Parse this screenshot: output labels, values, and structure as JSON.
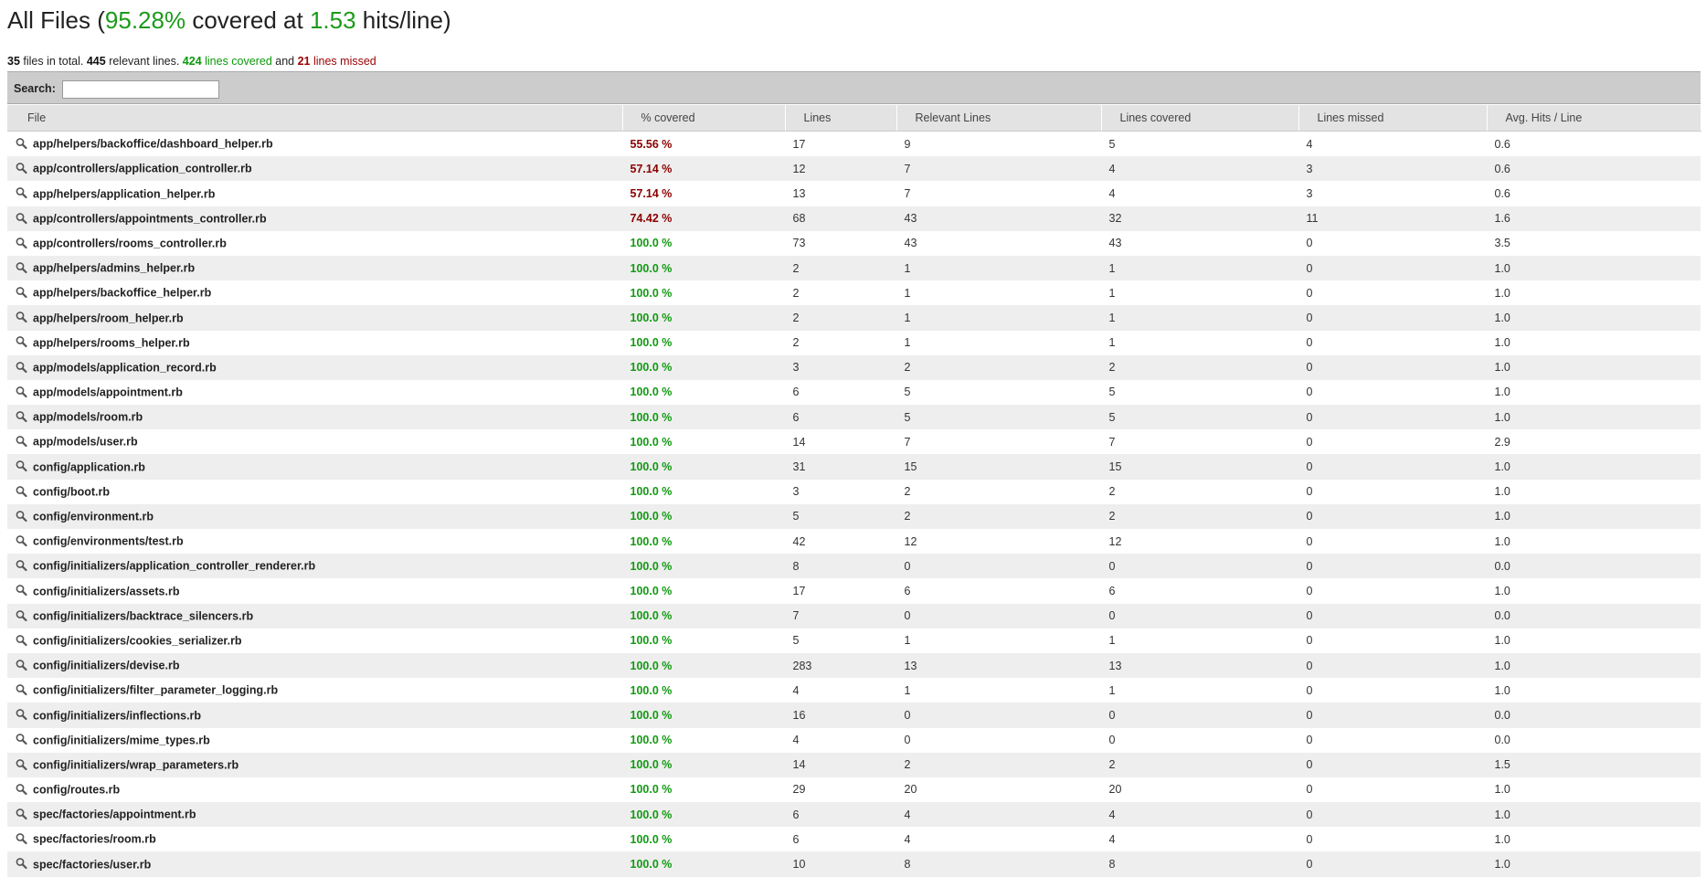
{
  "header": {
    "prefix": "All Files (",
    "covered_percent": "95.28%",
    "mid": " covered at ",
    "hits_per_line": "1.53",
    "suffix": " hits/line)"
  },
  "summary": {
    "file_count": "35",
    "t1": " files in total. ",
    "relevant_lines": "445",
    "t2": " relevant lines. ",
    "covered_lines": "424",
    "t3": " lines covered",
    "t4": " and ",
    "missed_lines": "21",
    "t5": " lines missed"
  },
  "search": {
    "label": "Search:",
    "value": ""
  },
  "table": {
    "headers": [
      "File",
      "% covered",
      "Lines",
      "Relevant Lines",
      "Lines covered",
      "Lines missed",
      "Avg. Hits / Line"
    ],
    "rows": [
      {
        "file": "app/helpers/backoffice/dashboard_helper.rb",
        "pct": "55.56 %",
        "status": "bad",
        "lines": "17",
        "relevant": "9",
        "covered": "5",
        "missed": "4",
        "avg": "0.6"
      },
      {
        "file": "app/controllers/application_controller.rb",
        "pct": "57.14 %",
        "status": "bad",
        "lines": "12",
        "relevant": "7",
        "covered": "4",
        "missed": "3",
        "avg": "0.6"
      },
      {
        "file": "app/helpers/application_helper.rb",
        "pct": "57.14 %",
        "status": "bad",
        "lines": "13",
        "relevant": "7",
        "covered": "4",
        "missed": "3",
        "avg": "0.6"
      },
      {
        "file": "app/controllers/appointments_controller.rb",
        "pct": "74.42 %",
        "status": "bad",
        "lines": "68",
        "relevant": "43",
        "covered": "32",
        "missed": "11",
        "avg": "1.6"
      },
      {
        "file": "app/controllers/rooms_controller.rb",
        "pct": "100.0 %",
        "status": "good",
        "lines": "73",
        "relevant": "43",
        "covered": "43",
        "missed": "0",
        "avg": "3.5"
      },
      {
        "file": "app/helpers/admins_helper.rb",
        "pct": "100.0 %",
        "status": "good",
        "lines": "2",
        "relevant": "1",
        "covered": "1",
        "missed": "0",
        "avg": "1.0"
      },
      {
        "file": "app/helpers/backoffice_helper.rb",
        "pct": "100.0 %",
        "status": "good",
        "lines": "2",
        "relevant": "1",
        "covered": "1",
        "missed": "0",
        "avg": "1.0"
      },
      {
        "file": "app/helpers/room_helper.rb",
        "pct": "100.0 %",
        "status": "good",
        "lines": "2",
        "relevant": "1",
        "covered": "1",
        "missed": "0",
        "avg": "1.0"
      },
      {
        "file": "app/helpers/rooms_helper.rb",
        "pct": "100.0 %",
        "status": "good",
        "lines": "2",
        "relevant": "1",
        "covered": "1",
        "missed": "0",
        "avg": "1.0"
      },
      {
        "file": "app/models/application_record.rb",
        "pct": "100.0 %",
        "status": "good",
        "lines": "3",
        "relevant": "2",
        "covered": "2",
        "missed": "0",
        "avg": "1.0"
      },
      {
        "file": "app/models/appointment.rb",
        "pct": "100.0 %",
        "status": "good",
        "lines": "6",
        "relevant": "5",
        "covered": "5",
        "missed": "0",
        "avg": "1.0"
      },
      {
        "file": "app/models/room.rb",
        "pct": "100.0 %",
        "status": "good",
        "lines": "6",
        "relevant": "5",
        "covered": "5",
        "missed": "0",
        "avg": "1.0"
      },
      {
        "file": "app/models/user.rb",
        "pct": "100.0 %",
        "status": "good",
        "lines": "14",
        "relevant": "7",
        "covered": "7",
        "missed": "0",
        "avg": "2.9"
      },
      {
        "file": "config/application.rb",
        "pct": "100.0 %",
        "status": "good",
        "lines": "31",
        "relevant": "15",
        "covered": "15",
        "missed": "0",
        "avg": "1.0"
      },
      {
        "file": "config/boot.rb",
        "pct": "100.0 %",
        "status": "good",
        "lines": "3",
        "relevant": "2",
        "covered": "2",
        "missed": "0",
        "avg": "1.0"
      },
      {
        "file": "config/environment.rb",
        "pct": "100.0 %",
        "status": "good",
        "lines": "5",
        "relevant": "2",
        "covered": "2",
        "missed": "0",
        "avg": "1.0"
      },
      {
        "file": "config/environments/test.rb",
        "pct": "100.0 %",
        "status": "good",
        "lines": "42",
        "relevant": "12",
        "covered": "12",
        "missed": "0",
        "avg": "1.0"
      },
      {
        "file": "config/initializers/application_controller_renderer.rb",
        "pct": "100.0 %",
        "status": "good",
        "lines": "8",
        "relevant": "0",
        "covered": "0",
        "missed": "0",
        "avg": "0.0"
      },
      {
        "file": "config/initializers/assets.rb",
        "pct": "100.0 %",
        "status": "good",
        "lines": "17",
        "relevant": "6",
        "covered": "6",
        "missed": "0",
        "avg": "1.0"
      },
      {
        "file": "config/initializers/backtrace_silencers.rb",
        "pct": "100.0 %",
        "status": "good",
        "lines": "7",
        "relevant": "0",
        "covered": "0",
        "missed": "0",
        "avg": "0.0"
      },
      {
        "file": "config/initializers/cookies_serializer.rb",
        "pct": "100.0 %",
        "status": "good",
        "lines": "5",
        "relevant": "1",
        "covered": "1",
        "missed": "0",
        "avg": "1.0"
      },
      {
        "file": "config/initializers/devise.rb",
        "pct": "100.0 %",
        "status": "good",
        "lines": "283",
        "relevant": "13",
        "covered": "13",
        "missed": "0",
        "avg": "1.0"
      },
      {
        "file": "config/initializers/filter_parameter_logging.rb",
        "pct": "100.0 %",
        "status": "good",
        "lines": "4",
        "relevant": "1",
        "covered": "1",
        "missed": "0",
        "avg": "1.0"
      },
      {
        "file": "config/initializers/inflections.rb",
        "pct": "100.0 %",
        "status": "good",
        "lines": "16",
        "relevant": "0",
        "covered": "0",
        "missed": "0",
        "avg": "0.0"
      },
      {
        "file": "config/initializers/mime_types.rb",
        "pct": "100.0 %",
        "status": "good",
        "lines": "4",
        "relevant": "0",
        "covered": "0",
        "missed": "0",
        "avg": "0.0"
      },
      {
        "file": "config/initializers/wrap_parameters.rb",
        "pct": "100.0 %",
        "status": "good",
        "lines": "14",
        "relevant": "2",
        "covered": "2",
        "missed": "0",
        "avg": "1.5"
      },
      {
        "file": "config/routes.rb",
        "pct": "100.0 %",
        "status": "good",
        "lines": "29",
        "relevant": "20",
        "covered": "20",
        "missed": "0",
        "avg": "1.0"
      },
      {
        "file": "spec/factories/appointment.rb",
        "pct": "100.0 %",
        "status": "good",
        "lines": "6",
        "relevant": "4",
        "covered": "4",
        "missed": "0",
        "avg": "1.0"
      },
      {
        "file": "spec/factories/room.rb",
        "pct": "100.0 %",
        "status": "good",
        "lines": "6",
        "relevant": "4",
        "covered": "4",
        "missed": "0",
        "avg": "1.0"
      },
      {
        "file": "spec/factories/user.rb",
        "pct": "100.0 %",
        "status": "good",
        "lines": "10",
        "relevant": "8",
        "covered": "8",
        "missed": "0",
        "avg": "1.0"
      }
    ]
  },
  "colors": {
    "good": "#119a11",
    "bad": "#8b0000",
    "header_bg": "#e3e3e3",
    "search_bg": "#cccccc"
  },
  "icons": {
    "row_icon": "magnifier-icon"
  }
}
